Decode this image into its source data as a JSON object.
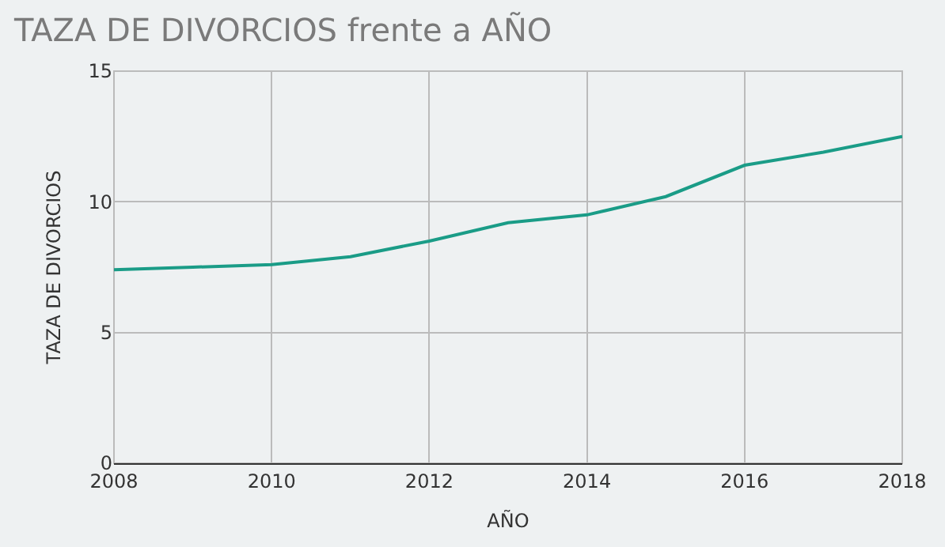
{
  "chart_data": {
    "type": "line",
    "title": "TAZA DE DIVORCIOS frente a AÑO",
    "xlabel": "AÑO",
    "ylabel": "TAZA DE DIVORCIOS",
    "x": [
      2008,
      2009,
      2010,
      2011,
      2012,
      2013,
      2014,
      2015,
      2016,
      2017,
      2018
    ],
    "series": [
      {
        "color": "#1a9c87",
        "values": [
          7.4,
          7.5,
          7.6,
          7.9,
          8.5,
          9.2,
          9.5,
          10.2,
          11.4,
          11.9,
          12.5
        ]
      }
    ],
    "xlim": [
      2008,
      2018
    ],
    "xticks": [
      2008,
      2010,
      2012,
      2014,
      2016,
      2018
    ],
    "ylim": [
      0,
      15
    ],
    "yticks": [
      0,
      5,
      10,
      15
    ],
    "grid": true,
    "marker": "none",
    "line_style": "solid"
  }
}
